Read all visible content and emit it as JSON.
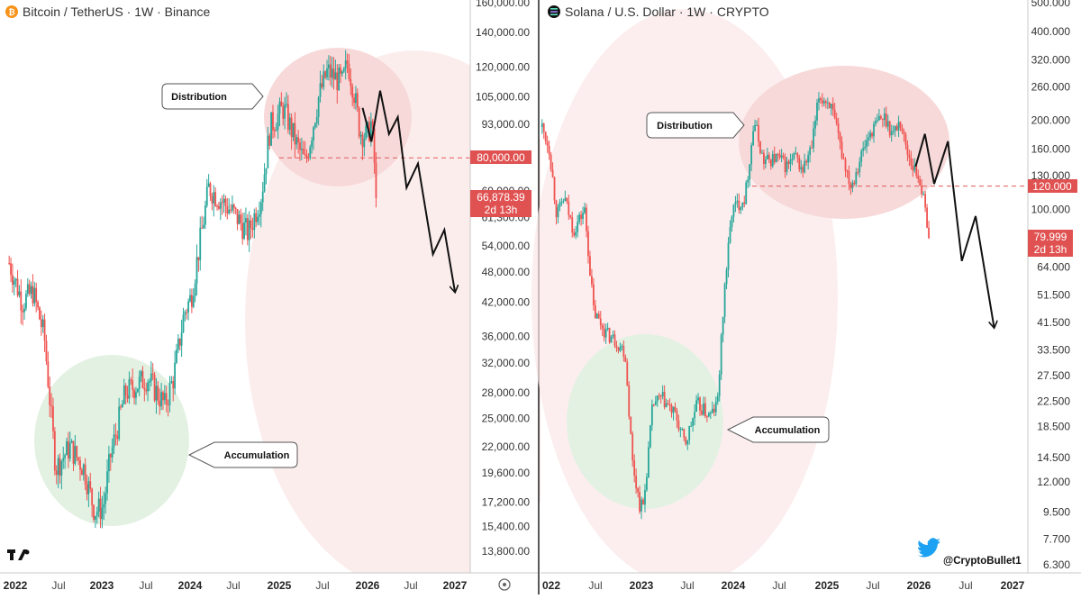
{
  "left": {
    "title": "Bitcoin / TetherUS · 1W · Binance",
    "icon": "bitcoin-icon",
    "price_ticks": [
      "160,000.00",
      "140,000.00",
      "120,000.00",
      "105,000.00",
      "93,000.00",
      "69,000.00",
      "61,300.00",
      "54,000.00",
      "48,000.00",
      "42,000.00",
      "36,000.00",
      "32,000.00",
      "28,000.00",
      "25,000.00",
      "22,000.00",
      "19,600.00",
      "17,200.00",
      "15,400.00",
      "13,800.00"
    ],
    "level_label": "80,000.00",
    "last_price": "66,878.39",
    "countdown": "2d 13h",
    "time_ticks": [
      "2022",
      "Jul",
      "2023",
      "Jul",
      "2024",
      "Jul",
      "2025",
      "Jul",
      "2026",
      "Jul",
      "2027"
    ],
    "annotations": {
      "distribution": "Distribution",
      "accumulation": "Accumulation"
    },
    "logo": "TV"
  },
  "right": {
    "title": "Solana / U.S. Dollar · 1W · CRYPTO",
    "icon": "solana-icon",
    "price_ticks": [
      "500.000",
      "400.000",
      "320.000",
      "260.000",
      "200.000",
      "160.000",
      "130.000",
      "100.000",
      "64.000",
      "51.500",
      "41.500",
      "33.500",
      "27.500",
      "22.500",
      "18.500",
      "14.500",
      "12.000",
      "9.500",
      "7.700",
      "6.300"
    ],
    "level_label": "120.000",
    "last_price": "79.999",
    "countdown": "2d 13h",
    "time_ticks": [
      "022",
      "Jul",
      "2023",
      "Jul",
      "2024",
      "Jul",
      "2025",
      "Jul",
      "2026",
      "Jul",
      "2027"
    ],
    "annotations": {
      "distribution": "Distribution",
      "accumulation": "Accumulation"
    },
    "twitter_handle": "@CryptoBullet1"
  },
  "colors": {
    "up": "#26a69a",
    "down": "#ef5350",
    "level": "#e05a5a",
    "badge": "#e05252",
    "green_zone": "#e3f1e3",
    "red_zone": "#f7dcdc"
  },
  "chart_data": [
    {
      "type": "candlestick",
      "title": "Bitcoin / TetherUS · 1W · Binance",
      "scale": "log",
      "ylim": [
        12500,
        165000
      ],
      "x_range": [
        "2022-01",
        "2027-01"
      ],
      "horizontal_level": 80000,
      "last_price": 66878.39,
      "path_anchors": [
        [
          2021.93,
          50000
        ],
        [
          2022.08,
          42000
        ],
        [
          2022.2,
          44000
        ],
        [
          2022.33,
          36000
        ],
        [
          2022.46,
          20000
        ],
        [
          2022.62,
          22000
        ],
        [
          2022.78,
          20000
        ],
        [
          2022.9,
          16500
        ],
        [
          2023.0,
          16800
        ],
        [
          2023.08,
          21000
        ],
        [
          2023.25,
          28000
        ],
        [
          2023.5,
          30000
        ],
        [
          2023.7,
          26500
        ],
        [
          2023.8,
          30000
        ],
        [
          2023.92,
          40000
        ],
        [
          2024.0,
          43000
        ],
        [
          2024.2,
          70000
        ],
        [
          2024.5,
          62000
        ],
        [
          2024.65,
          57000
        ],
        [
          2024.8,
          68000
        ],
        [
          2024.9,
          92000
        ],
        [
          2025.05,
          100000
        ],
        [
          2025.2,
          85000
        ],
        [
          2025.3,
          78000
        ],
        [
          2025.45,
          105000
        ],
        [
          2025.55,
          118000
        ],
        [
          2025.62,
          115000
        ],
        [
          2025.72,
          112000
        ],
        [
          2025.78,
          123000
        ],
        [
          2025.85,
          108000
        ],
        [
          2025.92,
          90000
        ],
        [
          2026.0,
          88000
        ],
        [
          2026.05,
          94000
        ],
        [
          2026.08,
          80000
        ],
        [
          2026.11,
          67000
        ]
      ],
      "projection": [
        [
          2025.95,
          100000
        ],
        [
          2026.05,
          86000
        ],
        [
          2026.15,
          108000
        ],
        [
          2026.25,
          89000
        ],
        [
          2026.35,
          96000
        ],
        [
          2026.45,
          70000
        ],
        [
          2026.58,
          78000
        ],
        [
          2026.75,
          52000
        ],
        [
          2026.88,
          58000
        ],
        [
          2027.0,
          44000
        ]
      ],
      "zones": [
        {
          "label": "Distribution",
          "color": "red",
          "center": [
            2025.43,
            90000
          ]
        },
        {
          "label": "Accumulation",
          "color": "green",
          "center": [
            2022.88,
            22500
          ]
        }
      ]
    },
    {
      "type": "candlestick",
      "title": "Solana / U.S. Dollar · 1W · CRYPTO",
      "scale": "log",
      "ylim": [
        6.0,
        510
      ],
      "x_range": [
        "2022-01",
        "2027-01"
      ],
      "horizontal_level": 120,
      "last_price": 79.999,
      "path_anchors": [
        [
          2021.9,
          190
        ],
        [
          2021.98,
          160
        ],
        [
          2022.06,
          95
        ],
        [
          2022.14,
          110
        ],
        [
          2022.24,
          85
        ],
        [
          2022.36,
          100
        ],
        [
          2022.46,
          45
        ],
        [
          2022.6,
          38
        ],
        [
          2022.7,
          36
        ],
        [
          2022.8,
          33
        ],
        [
          2022.88,
          14
        ],
        [
          2022.96,
          10
        ],
        [
          2023.0,
          10
        ],
        [
          2023.1,
          22
        ],
        [
          2023.2,
          23
        ],
        [
          2023.35,
          20
        ],
        [
          2023.45,
          16
        ],
        [
          2023.58,
          22
        ],
        [
          2023.72,
          20
        ],
        [
          2023.8,
          22
        ],
        [
          2023.88,
          55
        ],
        [
          2023.96,
          100
        ],
        [
          2024.1,
          110
        ],
        [
          2024.2,
          200
        ],
        [
          2024.3,
          145
        ],
        [
          2024.45,
          150
        ],
        [
          2024.55,
          140
        ],
        [
          2024.65,
          150
        ],
        [
          2024.72,
          135
        ],
        [
          2024.82,
          160
        ],
        [
          2024.9,
          240
        ],
        [
          2025.02,
          230
        ],
        [
          2025.14,
          160
        ],
        [
          2025.25,
          120
        ],
        [
          2025.35,
          150
        ],
        [
          2025.45,
          180
        ],
        [
          2025.55,
          200
        ],
        [
          2025.62,
          205
        ],
        [
          2025.7,
          180
        ],
        [
          2025.78,
          200
        ],
        [
          2025.85,
          160
        ],
        [
          2025.92,
          140
        ],
        [
          2026.0,
          125
        ],
        [
          2026.05,
          100
        ],
        [
          2026.11,
          80
        ]
      ],
      "projection": [
        [
          2025.95,
          140
        ],
        [
          2026.05,
          180
        ],
        [
          2026.15,
          122
        ],
        [
          2026.3,
          170
        ],
        [
          2026.45,
          67
        ],
        [
          2026.6,
          95
        ],
        [
          2026.8,
          40
        ]
      ],
      "zones": [
        {
          "label": "Distribution",
          "color": "red",
          "center": [
            2025.0,
            160
          ]
        },
        {
          "label": "Accumulation",
          "color": "green",
          "center": [
            2023.0,
            17
          ]
        }
      ]
    }
  ]
}
